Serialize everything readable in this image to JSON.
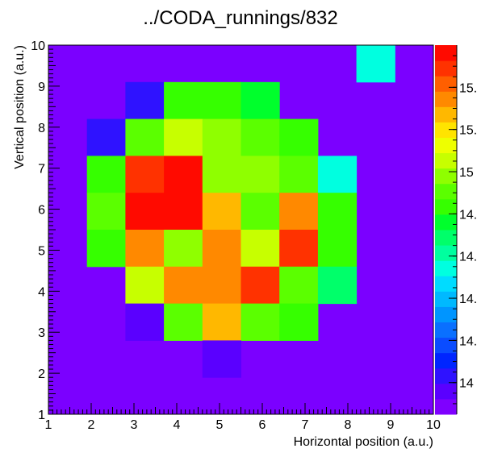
{
  "chart_data": {
    "type": "heatmap",
    "title": "../CODA_runnings/832",
    "xlabel": "Horizontal position (a.u.)",
    "ylabel": "Vertical position (a.u.)",
    "xlim": [
      1,
      10
    ],
    "ylim": [
      1,
      10
    ],
    "nx": 10,
    "ny": 10,
    "x_ticks": [
      "1",
      "2",
      "3",
      "4",
      "5",
      "6",
      "7",
      "8",
      "9",
      "10"
    ],
    "y_ticks": [
      "1",
      "2",
      "3",
      "4",
      "5",
      "6",
      "7",
      "8",
      "9",
      "10"
    ],
    "zlim": [
      13.85,
      15.6
    ],
    "z_tick_labels": [
      "14",
      "14.",
      "14.",
      "14.",
      "14.",
      "15",
      "15.",
      "15."
    ],
    "z_tick_values": [
      14.0,
      14.2,
      14.4,
      14.6,
      14.8,
      15.0,
      15.2,
      15.4
    ],
    "background_color": "#7b00ff",
    "palette": [
      "#7f00ff",
      "#5a00ff",
      "#2f12ff",
      "#0025ff",
      "#0a4cff",
      "#0a70ff",
      "#0095ff",
      "#00b9ff",
      "#00dcff",
      "#00ffe0",
      "#00ff9f",
      "#00ff6a",
      "#00ff2c",
      "#36ff00",
      "#5bff00",
      "#8fff00",
      "#c7ff00",
      "#eeff00",
      "#ffe400",
      "#ffb800",
      "#ff8900",
      "#ff5f00",
      "#ff3200",
      "#ff0a00"
    ],
    "cells": [
      [
        9,
        10,
        14.55
      ],
      [
        3,
        9,
        14.04
      ],
      [
        4,
        9,
        14.84
      ],
      [
        5,
        9,
        14.84
      ],
      [
        6,
        9,
        14.75
      ],
      [
        2,
        8,
        14.04
      ],
      [
        3,
        8,
        14.92
      ],
      [
        4,
        8,
        15.07
      ],
      [
        5,
        8,
        15.0
      ],
      [
        6,
        8,
        14.93
      ],
      [
        7,
        8,
        14.87
      ],
      [
        2,
        7,
        14.85
      ],
      [
        3,
        7,
        15.49
      ],
      [
        4,
        7,
        15.55
      ],
      [
        5,
        7,
        15.0
      ],
      [
        6,
        7,
        14.95
      ],
      [
        7,
        7,
        14.94
      ],
      [
        8,
        7,
        14.55
      ],
      [
        2,
        6,
        14.92
      ],
      [
        3,
        6,
        15.55
      ],
      [
        4,
        6,
        15.55
      ],
      [
        5,
        6,
        15.28
      ],
      [
        6,
        6,
        14.93
      ],
      [
        7,
        6,
        15.35
      ],
      [
        8,
        6,
        14.86
      ],
      [
        2,
        5,
        14.86
      ],
      [
        3,
        5,
        15.36
      ],
      [
        4,
        5,
        15.0
      ],
      [
        5,
        5,
        15.35
      ],
      [
        6,
        5,
        15.08
      ],
      [
        7,
        5,
        15.49
      ],
      [
        8,
        5,
        14.86
      ],
      [
        3,
        4,
        15.02
      ],
      [
        4,
        4,
        15.36
      ],
      [
        5,
        4,
        15.36
      ],
      [
        6,
        4,
        15.48
      ],
      [
        7,
        4,
        14.93
      ],
      [
        8,
        4,
        14.68
      ],
      [
        3,
        3,
        13.96
      ],
      [
        4,
        3,
        14.92
      ],
      [
        5,
        3,
        15.28
      ],
      [
        6,
        3,
        14.92
      ],
      [
        7,
        3,
        14.85
      ],
      [
        5,
        2,
        13.96
      ]
    ]
  }
}
